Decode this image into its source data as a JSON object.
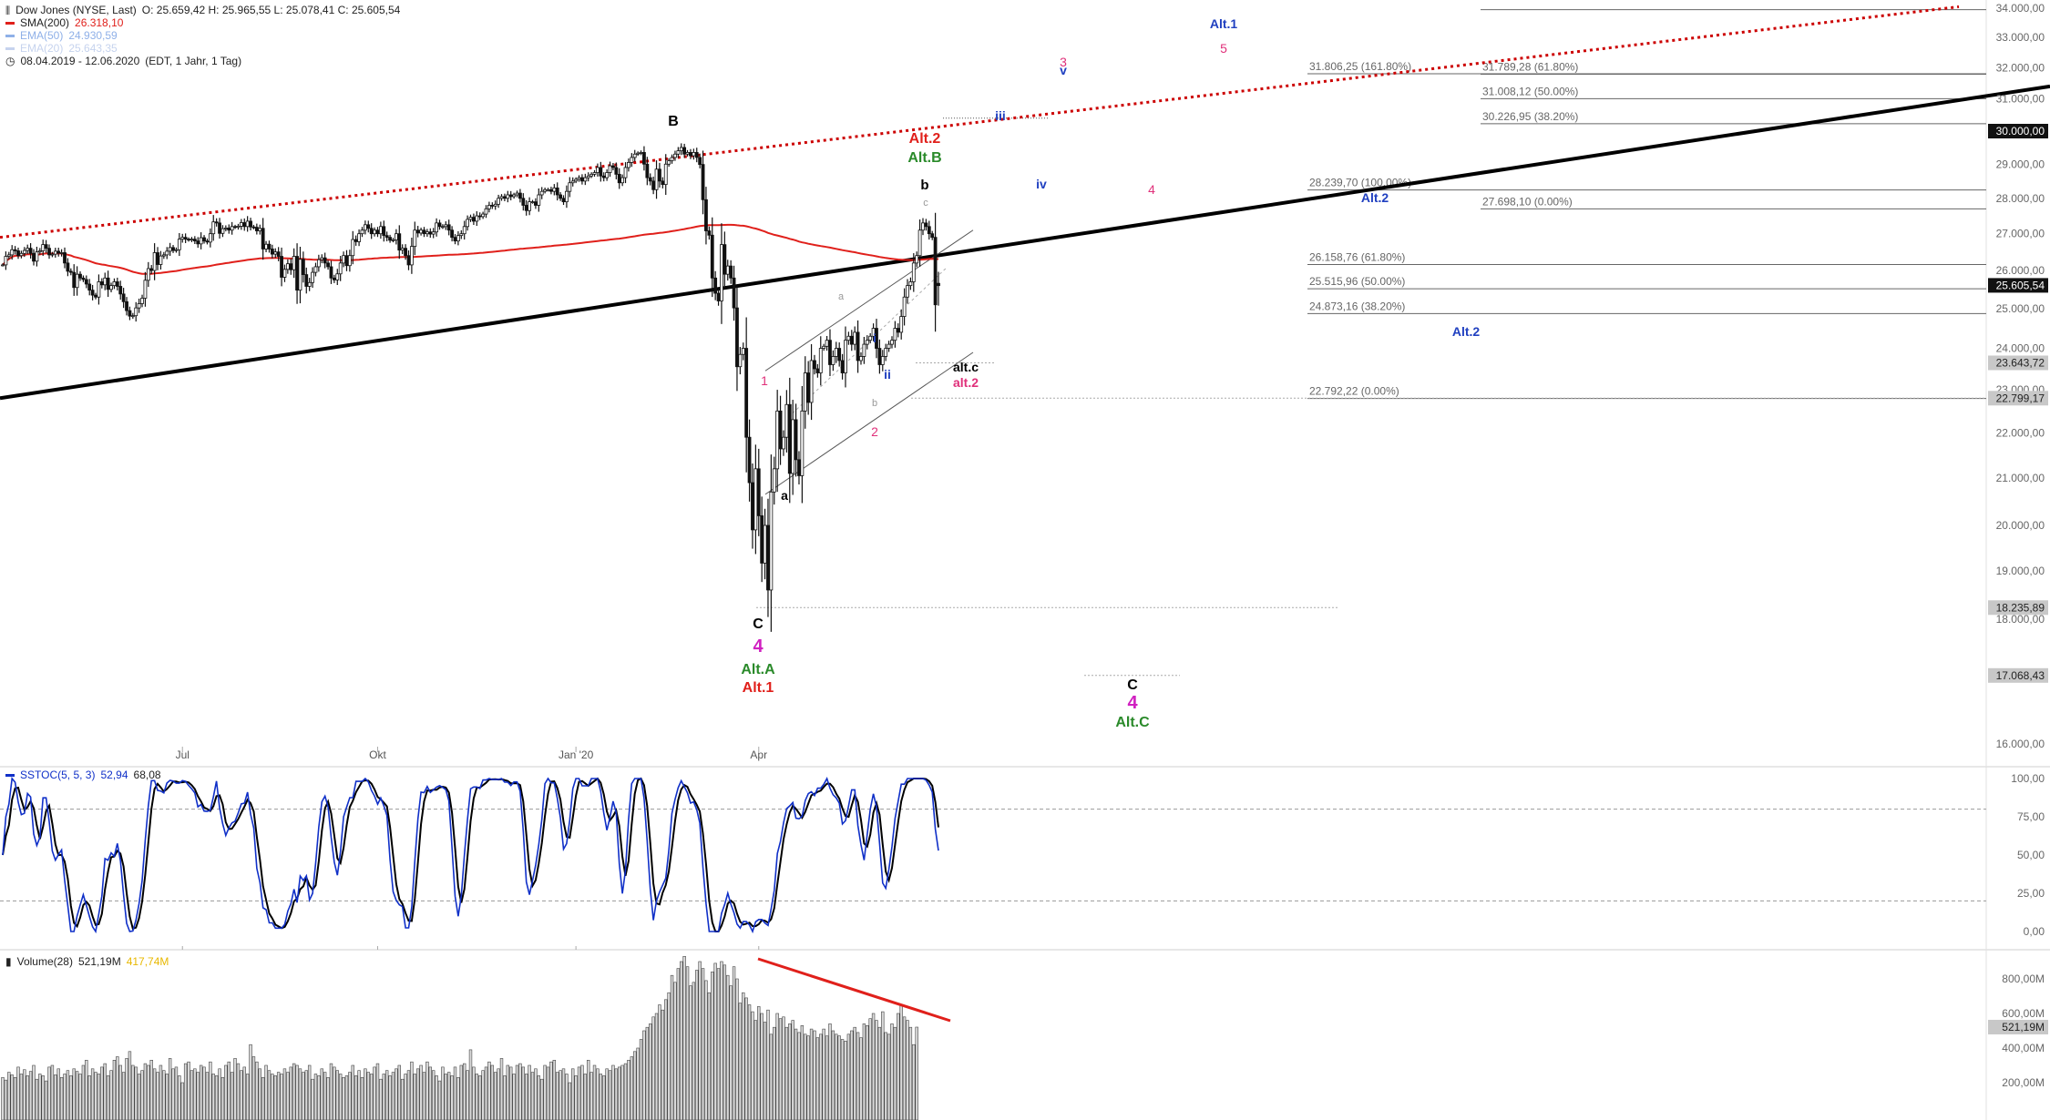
{
  "header": {
    "instrument": "Dow Jones (NYSE, Last)",
    "ohlc": "O: 25.659,42  H: 25.965,55  L: 25.078,41  C: 25.605,54",
    "sma200_label": "SMA(200)",
    "sma200_value": "26.318,10",
    "ema50_label": "EMA(50)",
    "ema50_value": "24.930,59",
    "ema20_label": "EMA(20)",
    "ema20_value": "25.643,35",
    "range": "08.04.2019 - 12.06.2020",
    "range_note": "(EDT, 1 Jahr, 1 Tag)"
  },
  "stoch_legend": {
    "label": "SSTOC(5, 5, 3)",
    "v1": "52,94",
    "v2": "68,08"
  },
  "volume_legend": {
    "label": "Volume(28)",
    "v1": "521,19M",
    "v2": "417,74M"
  },
  "colors": {
    "sma200": "#e0201b",
    "ema50": "#8fb0e8",
    "ema20": "#c6d3ee",
    "trend": "#000000",
    "channel": "#cc0000",
    "stoch_k": "#1030c8",
    "stoch_d": "#000000",
    "volume_trend": "#e0201b",
    "stoch_up": "#7ed07e",
    "stoch_dn": "#e07ea0"
  },
  "chart_data": [
    {
      "type": "candlestick",
      "title": "Dow Jones (NYSE, Last)",
      "x_ticks": [
        "Jul",
        "Okt",
        "Jan '20",
        "Apr"
      ],
      "y_ticks": [
        "34.000,00",
        "33.000,00",
        "32.000,00",
        "31.000,00",
        "29.000,00",
        "28.000,00",
        "27.000,00",
        "26.000,00",
        "25.000,00",
        "24.000,00",
        "23.000,00",
        "22.000,00",
        "21.000,00",
        "20.000,00",
        "19.000,00",
        "18.000,00",
        "16.000,00"
      ],
      "ylim": [
        15500,
        34200
      ],
      "price_markers": [
        {
          "label": "30.000,00",
          "value": 30000,
          "style": "black"
        },
        {
          "label": "25.605,54",
          "value": 25605.54,
          "style": "black"
        },
        {
          "label": "23.643,72",
          "value": 23643.72,
          "style": "gray"
        },
        {
          "label": "22.799,17",
          "value": 22799.17,
          "style": "gray"
        },
        {
          "label": "18.235,89",
          "value": 18235.89,
          "style": "gray"
        },
        {
          "label": "17.068,43",
          "value": 17068.43,
          "style": "gray"
        }
      ],
      "last_bar": {
        "open": 25659.42,
        "high": 25965.55,
        "low": 25078.41,
        "close": 25605.54
      },
      "sma200_last": 26318.1,
      "fib_levels_left": [
        {
          "label": "31.806,25 (161.80%)",
          "value": 31806.25
        },
        {
          "label": "28.239,70 (100.00%)",
          "value": 28239.7
        },
        {
          "label": "26.158,76 (61.80%)",
          "value": 26158.76
        },
        {
          "label": "25.515,96 (50.00%)",
          "value": 25515.96
        },
        {
          "label": "24.873,16 (38.20%)",
          "value": 24873.16
        },
        {
          "label": "22.792,22 (0.00%)",
          "value": 22792.22
        }
      ],
      "fib_levels_right": [
        {
          "label": "31.789,28 (61.80%)",
          "value": 31789.28
        },
        {
          "label": "31.008,12 (50.00%)",
          "value": 31008.12
        },
        {
          "label": "30.226,95 (38.20%)",
          "value": 30226.95
        },
        {
          "label": "27.698,10 (0.00%)",
          "value": 27698.1
        }
      ],
      "wave_labels": [
        {
          "text": "B",
          "color": "#000000"
        },
        {
          "text": "C",
          "color": "#000000"
        },
        {
          "text": "4",
          "color": "#d020c0"
        },
        {
          "text": "Alt.A",
          "color": "#2a8a2a"
        },
        {
          "text": "Alt.1",
          "color": "#e0201b"
        },
        {
          "text": "1",
          "color": "#e0307a"
        },
        {
          "text": "a",
          "color": "#000000"
        },
        {
          "text": "a",
          "color": "#999999"
        },
        {
          "text": "b",
          "color": "#999999"
        },
        {
          "text": "c",
          "color": "#999999"
        },
        {
          "text": "i",
          "color": "#2040c0"
        },
        {
          "text": "ii",
          "color": "#2040c0"
        },
        {
          "text": "2",
          "color": "#e0307a"
        },
        {
          "text": "b",
          "color": "#000000"
        },
        {
          "text": "alt.c",
          "color": "#000000"
        },
        {
          "text": "alt.2",
          "color": "#e0307a"
        },
        {
          "text": "Alt.2",
          "color": "#e0201b"
        },
        {
          "text": "Alt.B",
          "color": "#2a8a2a"
        },
        {
          "text": "iii",
          "color": "#2040c0"
        },
        {
          "text": "iv",
          "color": "#2040c0"
        },
        {
          "text": "v",
          "color": "#2040c0"
        },
        {
          "text": "3",
          "color": "#e0307a"
        },
        {
          "text": "4",
          "color": "#e0307a"
        },
        {
          "text": "5",
          "color": "#e0307a"
        },
        {
          "text": "Alt.1",
          "color": "#2040c0"
        },
        {
          "text": "Alt.2",
          "color": "#2040c0"
        },
        {
          "text": "Alt.2",
          "color": "#2040c0"
        },
        {
          "text": "C",
          "color": "#000000"
        },
        {
          "text": "4",
          "color": "#d020c0"
        },
        {
          "text": "Alt.C",
          "color": "#2a8a2a"
        }
      ],
      "closes": [
        26150,
        26380,
        26420,
        26560,
        26530,
        26400,
        26460,
        26540,
        26600,
        26460,
        26250,
        26500,
        26530,
        26700,
        26600,
        26420,
        26440,
        26520,
        26470,
        26480,
        26200,
        25980,
        25950,
        25550,
        25900,
        25800,
        25760,
        25640,
        25480,
        25350,
        25300,
        25700,
        25620,
        25800,
        25500,
        25600,
        25700,
        25580,
        25380,
        25180,
        24950,
        24810,
        24820,
        25020,
        25130,
        25270,
        25740,
        26050,
        26000,
        26480,
        26160,
        26390,
        26420,
        26520,
        26620,
        26540,
        26560,
        26850,
        26900,
        26850,
        26830,
        26850,
        26800,
        26720,
        26890,
        26800,
        26770,
        27000,
        27330,
        27300,
        27010,
        27140,
        27160,
        27100,
        27200,
        27180,
        27210,
        27310,
        27200,
        27350,
        27190,
        27180,
        27080,
        27150,
        26580,
        26710,
        26580,
        26440,
        26500,
        26380,
        25820,
        26030,
        26180,
        26020,
        26380,
        25480,
        26300,
        25890,
        25580,
        25680,
        25950,
        26100,
        26290,
        26340,
        26200,
        26100,
        25800,
        25750,
        25910,
        26200,
        26400,
        26130,
        26400,
        26840,
        26780,
        27000,
        27100,
        27250,
        27150,
        27000,
        27100,
        27000,
        27200,
        26950,
        26900,
        26820,
        26830,
        27000,
        26550,
        26600,
        26400,
        26150,
        26650,
        27100,
        27020,
        27100,
        27000,
        27050,
        26990,
        27050,
        27300,
        27200,
        27200,
        27250,
        27100,
        26900,
        26800,
        26950,
        27000,
        27200,
        27400,
        27460,
        27350,
        27500,
        27480,
        27550,
        27700,
        27800,
        27780,
        27830,
        28000,
        28050,
        28000,
        28100,
        28050,
        28100,
        28150,
        28000,
        27800,
        27650,
        27900,
        27900,
        27800,
        28100,
        28200,
        28250,
        28250,
        28200,
        28300,
        28100,
        28000,
        27900,
        28200,
        28450,
        28500,
        28550,
        28600,
        28500,
        28600,
        28650,
        28700,
        28750,
        28900,
        28650,
        28600,
        28750,
        28950,
        28900,
        28700,
        28450,
        28600,
        28900,
        29050,
        29200,
        29300,
        29330,
        29350,
        29000,
        28600,
        28500,
        28250,
        28850,
        28500,
        28400,
        29000,
        29100,
        29200,
        29300,
        29400,
        29500,
        29300,
        29350,
        29250,
        29350,
        29200,
        28990,
        27960,
        27080,
        26960,
        25800,
        25400,
        25200,
        26700,
        25900,
        26120,
        25800,
        25020,
        23550,
        23850,
        24000,
        21900,
        20900,
        19900,
        21200,
        20200,
        19170,
        20000,
        18600,
        20700,
        21200,
        22500,
        21640,
        21900,
        22650,
        21100,
        22300,
        21400,
        21050,
        22500,
        23400,
        22700,
        23700,
        23500,
        23400,
        24000,
        24050,
        24200,
        23600,
        23800,
        24000,
        23700,
        23400,
        24200,
        24300,
        24100,
        24400,
        23700,
        23800,
        24100,
        24200,
        24300,
        24500,
        24000,
        23600,
        23800,
        24000,
        24100,
        24200,
        24500,
        24400,
        24800,
        25300,
        25600,
        25700,
        26200,
        26400,
        27100,
        27300,
        27200,
        27000,
        26900,
        25100,
        25600
      ],
      "volumes_m": [
        230,
        215,
        260,
        245,
        230,
        290,
        250,
        275,
        240,
        265,
        300,
        220,
        250,
        240,
        210,
        290,
        300,
        245,
        280,
        230,
        250,
        270,
        240,
        280,
        265,
        250,
        300,
        330,
        240,
        280,
        260,
        250,
        290,
        310,
        240,
        270,
        330,
        350,
        300,
        260,
        340,
        380,
        300,
        290,
        250,
        270,
        310,
        300,
        330,
        280,
        260,
        300,
        270,
        250,
        340,
        280,
        290,
        240,
        200,
        310,
        320,
        270,
        280,
        260,
        300,
        290,
        260,
        320,
        250,
        240,
        280,
        230,
        300,
        320,
        260,
        340,
        310,
        270,
        290,
        250,
        420,
        350,
        320,
        280,
        230,
        300,
        270,
        250,
        240,
        260,
        250,
        280,
        260,
        290,
        310,
        300,
        280,
        260,
        270,
        300,
        220,
        250,
        240,
        280,
        260,
        230,
        310,
        290,
        270,
        250,
        230,
        240,
        260,
        300,
        240,
        270,
        230,
        280,
        260,
        250,
        290,
        310,
        220,
        250,
        270,
        240,
        260,
        280,
        300,
        220,
        250,
        270,
        320,
        250,
        280,
        300,
        260,
        320,
        290,
        270,
        240,
        210,
        290,
        250,
        260,
        240,
        290,
        230,
        300,
        310,
        270,
        390,
        290,
        250,
        240,
        270,
        290,
        320,
        300,
        260,
        280,
        340,
        240,
        300,
        290,
        250,
        300,
        310,
        290,
        250,
        300,
        260,
        280,
        240,
        220,
        300,
        290,
        320,
        330,
        260,
        270,
        280,
        250,
        200,
        280,
        240,
        290,
        300,
        250,
        330,
        260,
        300,
        280,
        250,
        240,
        280,
        270,
        300,
        280,
        290,
        300,
        310,
        330,
        350,
        380,
        400,
        450,
        500,
        520,
        540,
        580,
        600,
        650,
        620,
        680,
        720,
        820,
        780,
        860,
        900,
        930,
        870,
        760,
        780,
        850,
        900,
        860,
        790,
        720,
        840,
        890,
        860,
        900,
        880,
        820,
        760,
        870,
        800,
        660,
        720,
        690,
        650,
        610,
        560,
        640,
        600,
        550,
        620,
        480,
        520,
        600,
        570,
        580,
        520,
        540,
        560,
        510,
        490,
        530,
        480,
        470,
        510,
        500,
        460,
        480,
        510,
        470,
        540,
        500,
        480,
        470,
        450,
        440,
        480,
        500,
        520,
        490,
        460,
        540,
        530,
        570,
        600,
        560,
        520,
        610,
        490,
        480,
        540,
        520,
        600,
        650,
        580,
        560,
        520,
        420,
        521
      ]
    },
    {
      "type": "line",
      "title": "SSTOC(5, 5, 3)",
      "y_ticks": [
        "100,00",
        "75,00",
        "50,00",
        "25,00",
        "0,00"
      ],
      "ylim": [
        -5,
        105
      ],
      "last_values": [
        52.94,
        68.08
      ]
    },
    {
      "type": "bar",
      "title": "Volume(28)",
      "y_ticks": [
        "800,00M",
        "600,00M",
        "400,00M",
        "200,00M"
      ],
      "price_marker": "521,19M"
    }
  ]
}
